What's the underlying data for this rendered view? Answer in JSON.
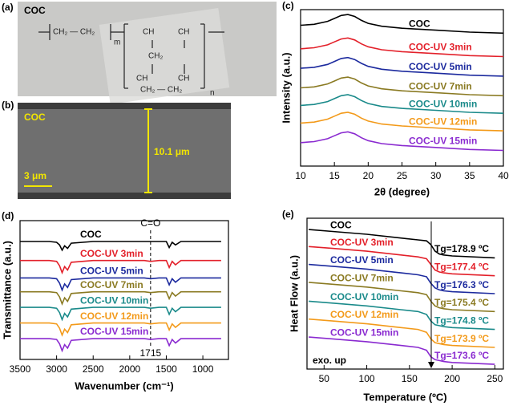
{
  "panel_a": {
    "label": "(a)",
    "sample": "COC",
    "structure": [
      "CH₂ — CH₂",
      "m",
      "CH",
      "CH",
      "CH₂",
      "CH",
      "CH",
      "CH₂ — CH₂",
      "n"
    ]
  },
  "panel_b": {
    "label": "(b)",
    "sample": "COC",
    "thickness": "10.1 μm",
    "scale_bar": "3 μm"
  },
  "chart_data": [
    {
      "type": "line",
      "panel_label": "(c)",
      "x_label": "2θ (degree)",
      "y_label": "Intensity (a.u.)",
      "x": [
        10,
        12,
        14,
        15,
        16,
        17,
        18,
        19,
        20,
        22,
        25,
        30,
        35,
        40
      ],
      "xlim": [
        10,
        40
      ],
      "xticks": [
        10,
        15,
        20,
        25,
        30,
        35,
        40
      ],
      "ylim": [
        0,
        8
      ],
      "series": [
        {
          "name": "COC",
          "color": "#000000",
          "values": [
            7.2,
            7.25,
            7.4,
            7.55,
            7.7,
            7.75,
            7.65,
            7.45,
            7.3,
            7.15,
            7.05,
            6.95,
            6.85,
            6.8
          ]
        },
        {
          "name": "COC-UV 3min",
          "color": "#e3202a",
          "values": [
            6.0,
            6.05,
            6.2,
            6.35,
            6.5,
            6.55,
            6.45,
            6.25,
            6.1,
            5.95,
            5.85,
            5.75,
            5.65,
            5.6
          ]
        },
        {
          "name": "COC-UV 5min",
          "color": "#1c2a9e",
          "values": [
            5.0,
            5.05,
            5.2,
            5.35,
            5.5,
            5.55,
            5.45,
            5.25,
            5.1,
            4.95,
            4.85,
            4.75,
            4.65,
            4.6
          ]
        },
        {
          "name": "COC-UV 7min",
          "color": "#8a7a22",
          "values": [
            4.0,
            4.05,
            4.2,
            4.35,
            4.5,
            4.55,
            4.45,
            4.25,
            4.1,
            3.95,
            3.85,
            3.75,
            3.65,
            3.6
          ]
        },
        {
          "name": "COC-UV 10min",
          "color": "#1a8a8a",
          "values": [
            3.1,
            3.15,
            3.3,
            3.45,
            3.6,
            3.65,
            3.55,
            3.35,
            3.2,
            3.05,
            2.95,
            2.85,
            2.75,
            2.7
          ]
        },
        {
          "name": "COC-UV 12min",
          "color": "#f39a1a",
          "values": [
            2.2,
            2.25,
            2.4,
            2.55,
            2.7,
            2.75,
            2.65,
            2.45,
            2.3,
            2.15,
            2.05,
            1.95,
            1.85,
            1.8
          ]
        },
        {
          "name": "COC-UV 15min",
          "color": "#8a2ad0",
          "values": [
            1.2,
            1.25,
            1.4,
            1.55,
            1.7,
            1.75,
            1.65,
            1.45,
            1.3,
            1.15,
            1.05,
            0.95,
            0.85,
            0.8
          ]
        }
      ]
    },
    {
      "type": "line",
      "panel_label": "(d)",
      "x_label": "Wavenumber (cm⁻¹)",
      "y_label": "Transmittance (a.u.)",
      "x": [
        3500,
        3100,
        3000,
        2960,
        2925,
        2890,
        2850,
        2800,
        2500,
        2000,
        1800,
        1715,
        1600,
        1500,
        1460,
        1420,
        1375,
        1300,
        1000,
        750
      ],
      "xlim": [
        3500,
        650
      ],
      "xticks": [
        3500,
        3000,
        2500,
        2000,
        1500,
        1000
      ],
      "ylim": [
        0,
        8
      ],
      "marker": {
        "x": 1715,
        "title": "C=O"
      },
      "series": [
        {
          "name": "COC",
          "color": "#000000",
          "values": [
            6.8,
            6.8,
            6.75,
            6.6,
            6.3,
            6.55,
            6.4,
            6.7,
            6.8,
            6.8,
            6.8,
            6.8,
            6.8,
            6.8,
            6.45,
            6.75,
            6.6,
            6.8,
            6.8,
            6.8
          ]
        },
        {
          "name": "COC-UV 3min",
          "color": "#e3202a",
          "values": [
            5.7,
            5.7,
            5.65,
            5.4,
            5.0,
            5.35,
            5.15,
            5.6,
            5.7,
            5.7,
            5.7,
            5.65,
            5.7,
            5.7,
            5.3,
            5.65,
            5.45,
            5.7,
            5.7,
            5.7
          ]
        },
        {
          "name": "COC-UV 5min",
          "color": "#1c2a9e",
          "values": [
            4.7,
            4.7,
            4.65,
            4.4,
            4.0,
            4.35,
            4.15,
            4.6,
            4.7,
            4.7,
            4.7,
            4.65,
            4.7,
            4.7,
            4.3,
            4.65,
            4.45,
            4.7,
            4.7,
            4.7
          ]
        },
        {
          "name": "COC-UV 7min",
          "color": "#8a7a22",
          "values": [
            3.9,
            3.9,
            3.85,
            3.6,
            3.2,
            3.55,
            3.35,
            3.8,
            3.9,
            3.9,
            3.9,
            3.85,
            3.9,
            3.9,
            3.5,
            3.85,
            3.65,
            3.9,
            3.9,
            3.9
          ]
        },
        {
          "name": "COC-UV 10min",
          "color": "#1a8a8a",
          "values": [
            3.0,
            3.0,
            2.95,
            2.7,
            2.3,
            2.65,
            2.45,
            2.9,
            3.0,
            3.0,
            3.0,
            2.95,
            3.0,
            3.0,
            2.6,
            2.95,
            2.75,
            3.0,
            3.0,
            3.0
          ]
        },
        {
          "name": "COC-UV 12min",
          "color": "#f39a1a",
          "values": [
            2.1,
            2.1,
            2.05,
            1.8,
            1.4,
            1.75,
            1.55,
            2.0,
            2.1,
            2.1,
            2.1,
            2.05,
            2.1,
            2.1,
            1.7,
            2.05,
            1.85,
            2.1,
            2.1,
            2.1
          ]
        },
        {
          "name": "COC-UV 15min",
          "color": "#8a2ad0",
          "values": [
            1.2,
            1.2,
            1.15,
            0.9,
            0.5,
            0.85,
            0.65,
            1.1,
            1.2,
            1.2,
            1.2,
            1.15,
            1.2,
            1.2,
            0.8,
            1.15,
            0.95,
            1.2,
            1.2,
            1.2
          ]
        }
      ]
    },
    {
      "type": "line",
      "panel_label": "(e)",
      "x_label": "Temperature (ºC)",
      "y_label": "Heat Flow (a.u.)",
      "x": [
        32,
        60,
        100,
        140,
        160,
        170,
        175,
        180,
        185,
        190,
        200,
        250
      ],
      "xlim": [
        30,
        260
      ],
      "xticks": [
        50,
        100,
        150,
        200,
        250
      ],
      "ylim": [
        0,
        8
      ],
      "note": "exo. up",
      "series": [
        {
          "name": "COC",
          "color": "#000000",
          "annotation": "Tg=178.9 ºC",
          "values": [
            7.4,
            7.3,
            7.15,
            6.95,
            6.85,
            6.8,
            6.6,
            6.25,
            6.1,
            6.05,
            6.0,
            5.9
          ]
        },
        {
          "name": "COC-UV 3min",
          "color": "#e3202a",
          "annotation": "Tg=177.4 ºC",
          "values": [
            6.5,
            6.4,
            6.25,
            6.05,
            5.95,
            5.85,
            5.55,
            5.25,
            5.15,
            5.1,
            5.05,
            4.95
          ]
        },
        {
          "name": "COC-UV 5min",
          "color": "#1c2a9e",
          "annotation": "Tg=176.3 ºC",
          "values": [
            5.55,
            5.45,
            5.3,
            5.1,
            5.0,
            4.9,
            4.55,
            4.3,
            4.2,
            4.15,
            4.1,
            4.0
          ]
        },
        {
          "name": "COC-UV 7min",
          "color": "#8a7a22",
          "annotation": "Tg=175.4 ºC",
          "values": [
            4.6,
            4.5,
            4.35,
            4.15,
            4.05,
            3.95,
            3.6,
            3.35,
            3.25,
            3.2,
            3.15,
            3.05
          ]
        },
        {
          "name": "COC-UV 10min",
          "color": "#1a8a8a",
          "annotation": "Tg=174.8 ºC",
          "values": [
            3.6,
            3.5,
            3.35,
            3.15,
            3.05,
            2.9,
            2.55,
            2.35,
            2.3,
            2.25,
            2.2,
            2.1
          ]
        },
        {
          "name": "COC-UV 12min",
          "color": "#f39a1a",
          "annotation": "Tg=173.9 ºC",
          "values": [
            2.65,
            2.55,
            2.4,
            2.2,
            2.1,
            1.95,
            1.6,
            1.4,
            1.35,
            1.3,
            1.25,
            1.15
          ]
        },
        {
          "name": "COC-UV 15min",
          "color": "#8a2ad0",
          "annotation": "Tg=173.6 ºC",
          "values": [
            1.7,
            1.6,
            1.45,
            1.25,
            1.15,
            1.0,
            0.65,
            0.5,
            0.45,
            0.4,
            0.35,
            0.25
          ]
        }
      ]
    }
  ]
}
